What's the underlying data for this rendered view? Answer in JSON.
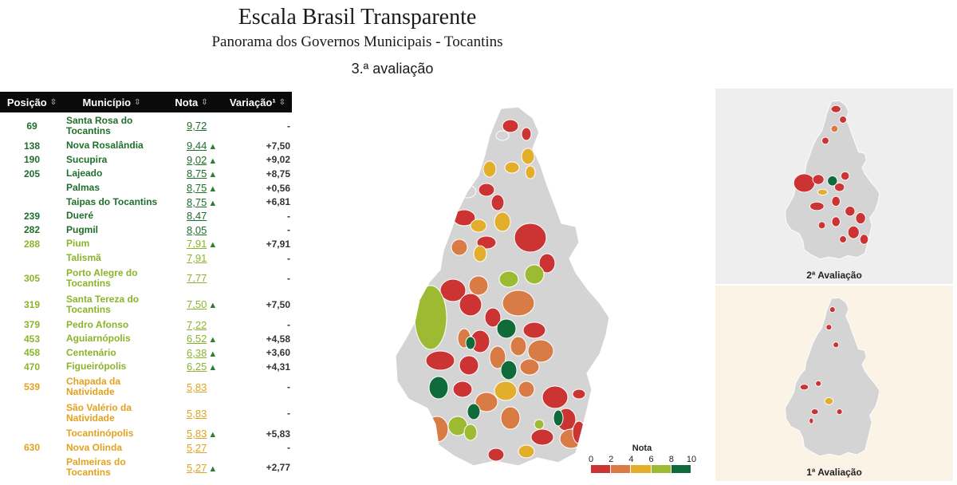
{
  "header": {
    "title": "Escala Brasil Transparente",
    "subtitle": "Panorama dos Governos Municipais - Tocantins",
    "edition": "3.ª avaliação"
  },
  "table": {
    "columns": [
      "Posição",
      "Município",
      "Nota",
      "Variação¹"
    ],
    "sort_icon": "⇳",
    "arrow_up": "▲",
    "rows": [
      {
        "pos": "69",
        "name": "Santa Rosa do Tocantins",
        "grade": "9,72",
        "up": false,
        "var": "-",
        "tier": "g-dark"
      },
      {
        "pos": "138",
        "name": "Nova Rosalândia",
        "grade": "9,44",
        "up": true,
        "var": "+7,50",
        "tier": "g-dark"
      },
      {
        "pos": "190",
        "name": "Sucupira",
        "grade": "9,02",
        "up": true,
        "var": "+9,02",
        "tier": "g-dark"
      },
      {
        "pos": "205",
        "name": "Lajeado",
        "grade": "8,75",
        "up": true,
        "var": "+8,75",
        "tier": "g-dark"
      },
      {
        "pos": "",
        "name": "Palmas",
        "grade": "8,75",
        "up": true,
        "var": "+0,56",
        "tier": "g-dark"
      },
      {
        "pos": "",
        "name": "Taipas do Tocantins",
        "grade": "8,75",
        "up": true,
        "var": "+6,81",
        "tier": "g-dark"
      },
      {
        "pos": "239",
        "name": "Dueré",
        "grade": "8,47",
        "up": false,
        "var": "-",
        "tier": "g-dark"
      },
      {
        "pos": "282",
        "name": "Pugmil",
        "grade": "8,05",
        "up": false,
        "var": "-",
        "tier": "g-dark"
      },
      {
        "pos": "288",
        "name": "Pium",
        "grade": "7,91",
        "up": true,
        "var": "+7,91",
        "tier": "g-mid"
      },
      {
        "pos": "",
        "name": "Talismã",
        "grade": "7,91",
        "up": false,
        "var": "-",
        "tier": "g-mid"
      },
      {
        "pos": "305",
        "name": "Porto Alegre do Tocantins",
        "grade": "7,77",
        "up": false,
        "var": "-",
        "tier": "g-mid"
      },
      {
        "pos": "319",
        "name": "Santa Tereza do Tocantins",
        "grade": "7,50",
        "up": true,
        "var": "+7,50",
        "tier": "g-mid"
      },
      {
        "pos": "379",
        "name": "Pedro Afonso",
        "grade": "7,22",
        "up": false,
        "var": "-",
        "tier": "g-mid"
      },
      {
        "pos": "453",
        "name": "Aguiarnópolis",
        "grade": "6,52",
        "up": true,
        "var": "+4,58",
        "tier": "g-mid"
      },
      {
        "pos": "458",
        "name": "Centenário",
        "grade": "6,38",
        "up": true,
        "var": "+3,60",
        "tier": "g-mid"
      },
      {
        "pos": "470",
        "name": "Figueirópolis",
        "grade": "6,25",
        "up": true,
        "var": "+4,31",
        "tier": "g-mid"
      },
      {
        "pos": "539",
        "name": "Chapada da Natividade",
        "grade": "5,83",
        "up": false,
        "var": "-",
        "tier": "g-or"
      },
      {
        "pos": "",
        "name": "São Valério da Natividade",
        "grade": "5,83",
        "up": false,
        "var": "-",
        "tier": "g-or"
      },
      {
        "pos": "",
        "name": "Tocantinópolis",
        "grade": "5,83",
        "up": true,
        "var": "+5,83",
        "tier": "g-or"
      },
      {
        "pos": "630",
        "name": "Nova Olinda",
        "grade": "5,27",
        "up": false,
        "var": "-",
        "tier": "g-or"
      },
      {
        "pos": "",
        "name": "Palmeiras do Tocantins",
        "grade": "5,27",
        "up": true,
        "var": "+2,77",
        "tier": "g-or"
      }
    ]
  },
  "legend": {
    "title": "Nota",
    "ticks": [
      "0",
      "2",
      "4",
      "6",
      "8",
      "10"
    ],
    "colors": [
      "#cc3333",
      "#d97b45",
      "#e3ae2c",
      "#9cbb33",
      "#0f6b3a"
    ]
  },
  "map_colors": {
    "gray": "#d4d4d4",
    "red": "#cc3333",
    "orange": "#d97b45",
    "yellow": "#e3ae2c",
    "lightgreen": "#9cbb33",
    "darkgreen": "#0f6b3a"
  },
  "panels": {
    "second": "2ª Avaliação",
    "first": "1ª Avaliação"
  }
}
